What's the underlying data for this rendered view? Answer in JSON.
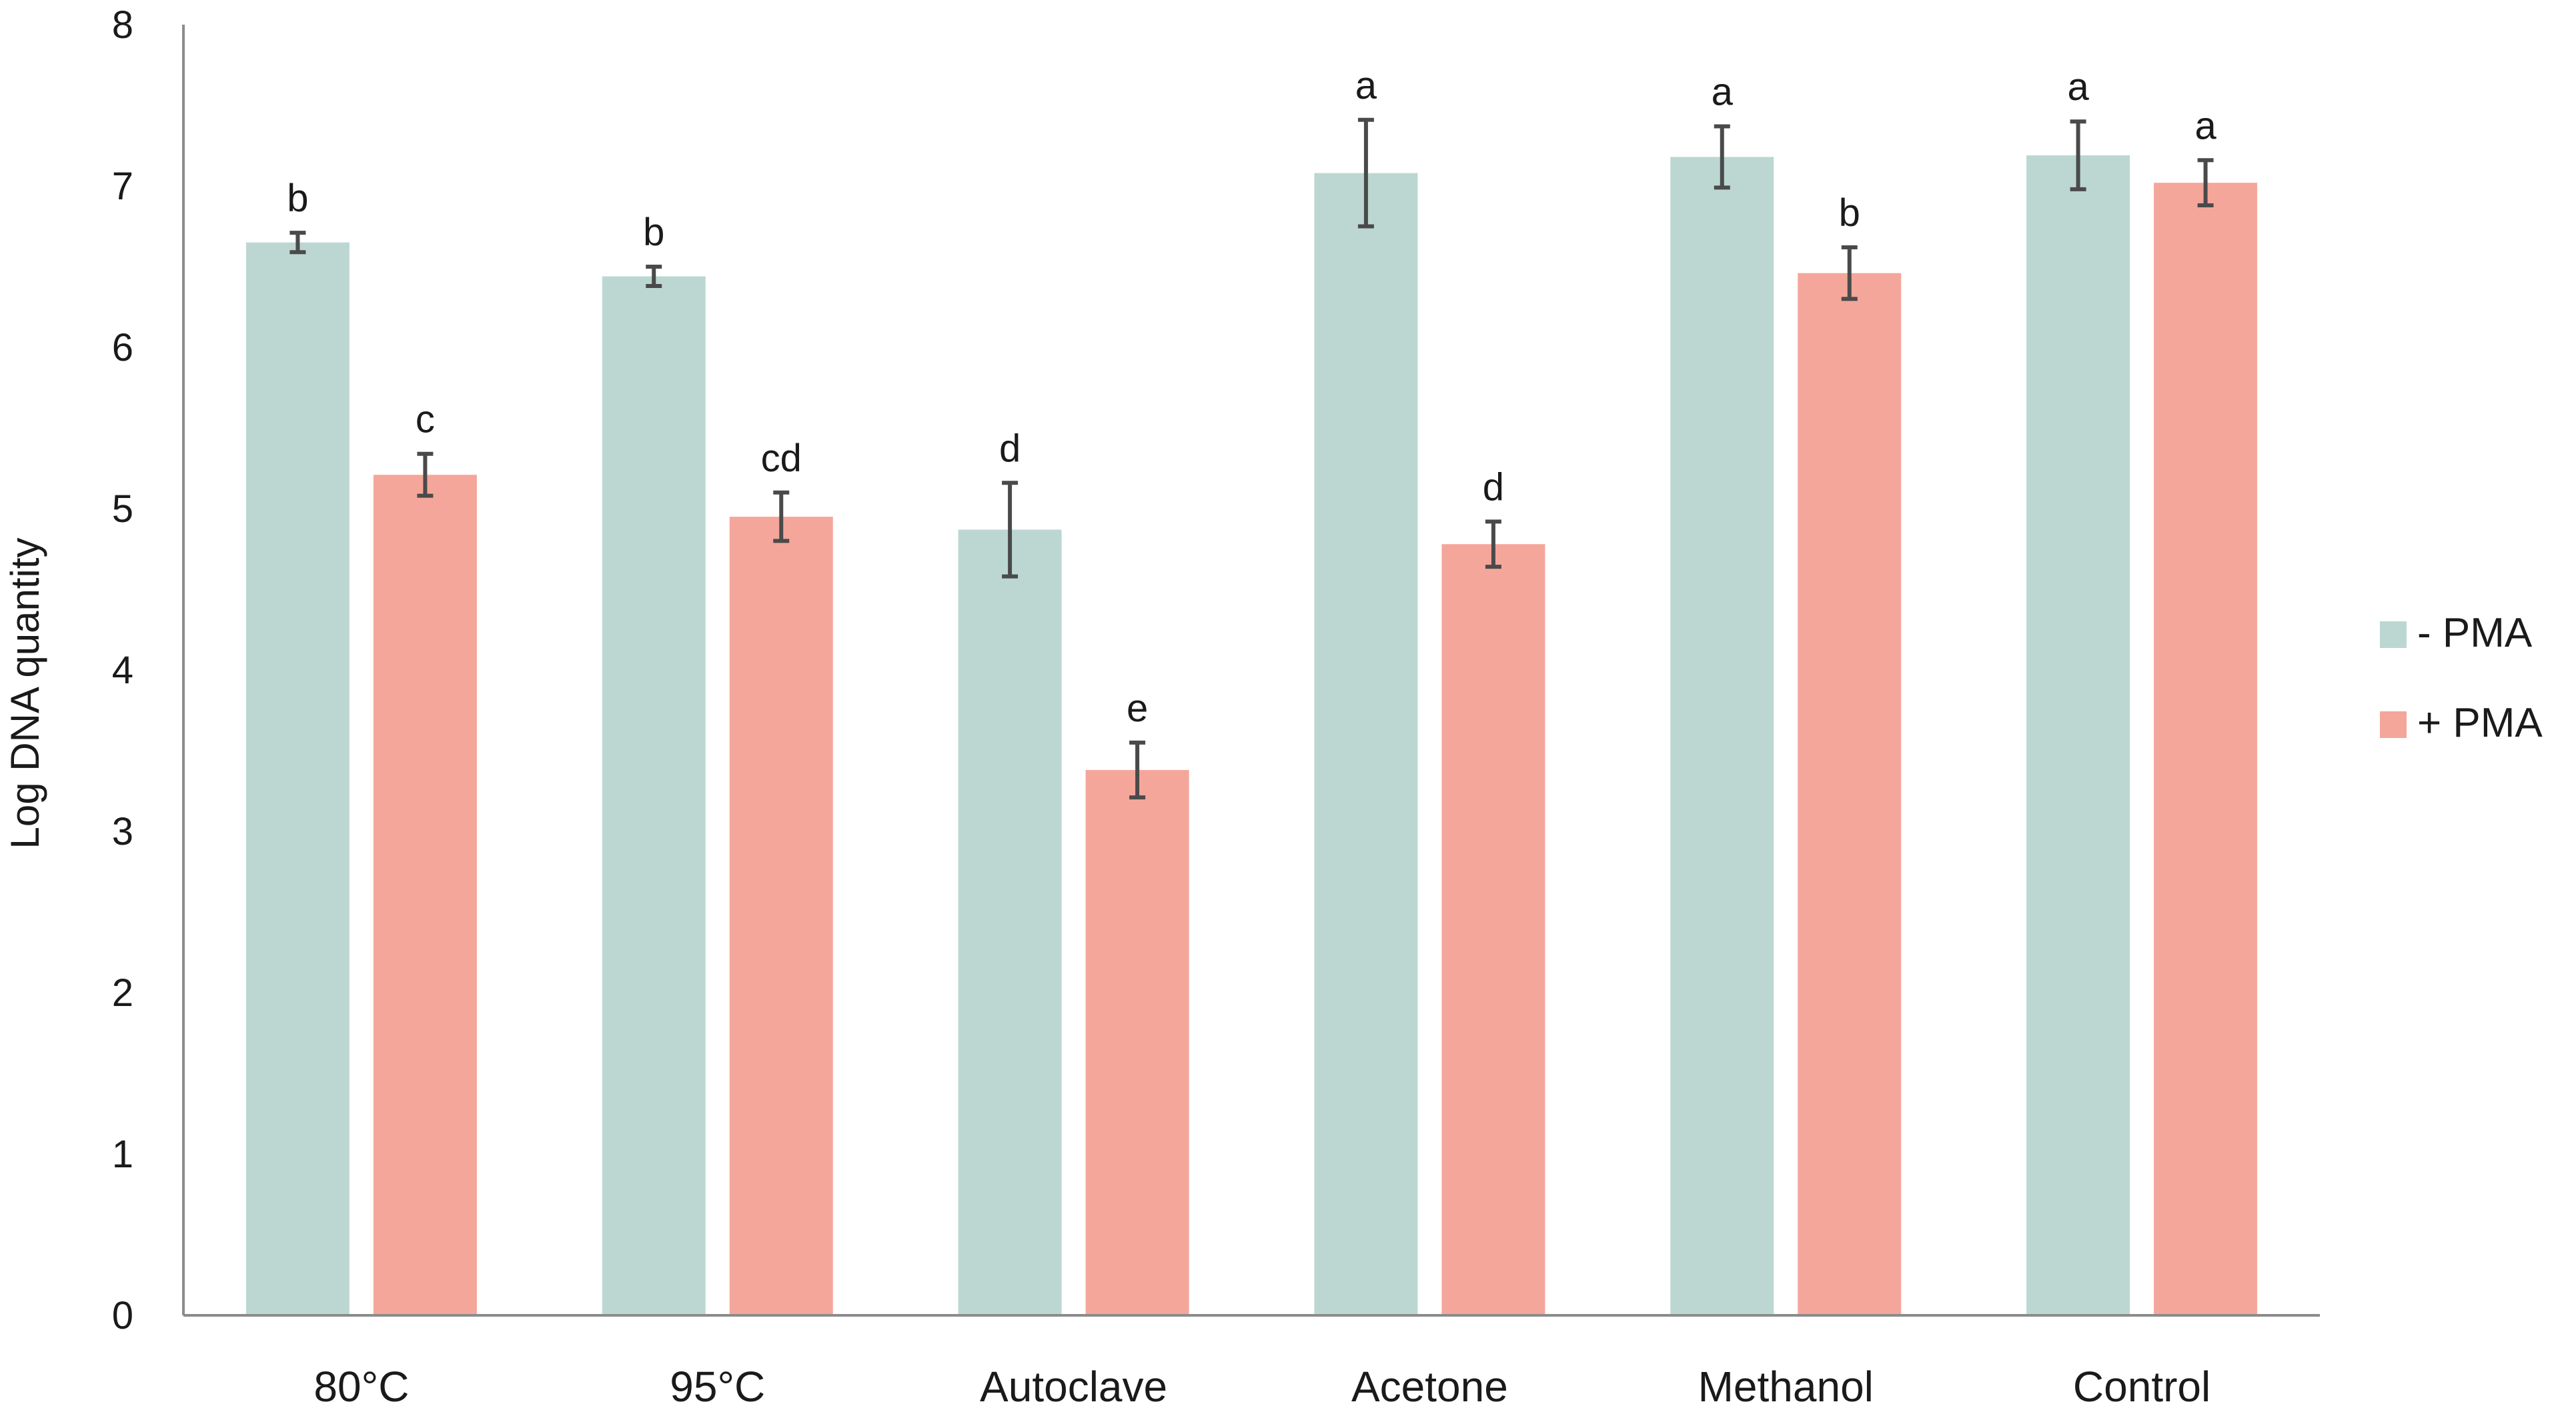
{
  "chart_data": {
    "type": "bar",
    "ylabel": "Log DNA quantity",
    "xlabel": "",
    "ylim": [
      0,
      8
    ],
    "yticks": [
      0,
      1,
      2,
      3,
      4,
      5,
      6,
      7,
      8
    ],
    "grid": false,
    "legend_position": "right",
    "categories": [
      "80°C",
      "95°C",
      "Autoclave",
      "Acetone",
      "Methanol",
      "Control"
    ],
    "series": [
      {
        "name": "- PMA",
        "color": "#bcd7d1",
        "values": [
          6.65,
          6.44,
          4.87,
          7.08,
          7.18,
          7.19
        ],
        "errors": [
          0.06,
          0.06,
          0.29,
          0.33,
          0.19,
          0.21
        ],
        "letters": [
          "b",
          "b",
          "d",
          "a",
          "a",
          "a"
        ]
      },
      {
        "name": "+ PMA",
        "color": "#f5a69a",
        "values": [
          5.21,
          4.95,
          3.38,
          4.78,
          6.46,
          7.02
        ],
        "errors": [
          0.13,
          0.15,
          0.17,
          0.14,
          0.16,
          0.14
        ],
        "letters": [
          "c",
          "cd",
          "e",
          "d",
          "b",
          "a"
        ]
      }
    ],
    "error_bar_color": "#4a4a4a",
    "axis_color": "#8c8c8c"
  }
}
